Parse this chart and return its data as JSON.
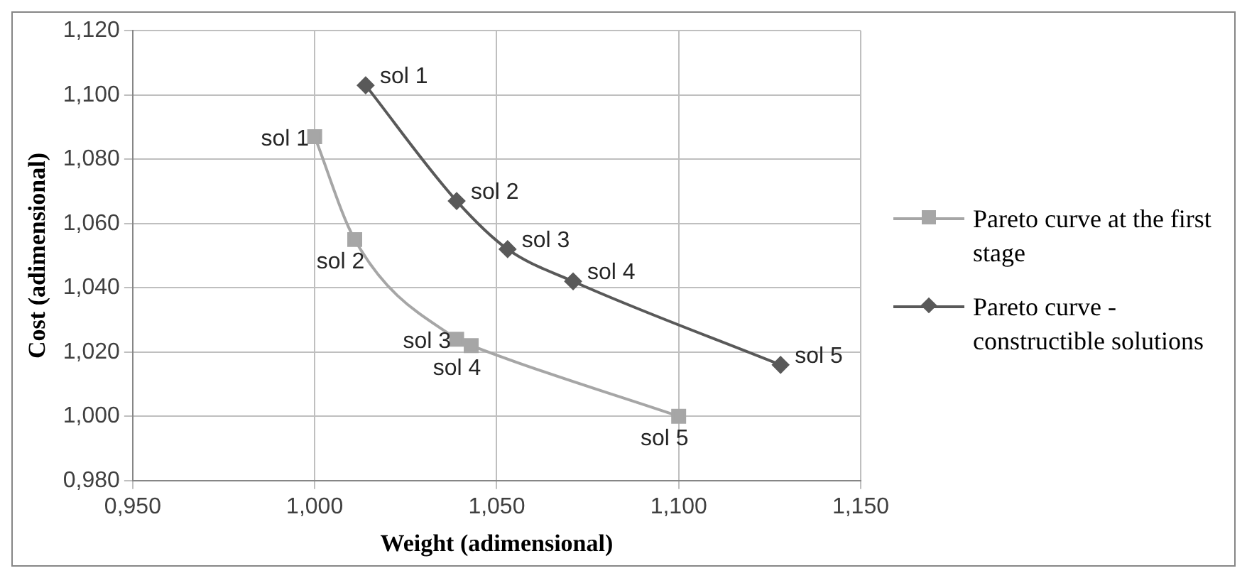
{
  "chart_data": {
    "type": "line",
    "xlabel": "Weight (adimensional)",
    "ylabel": "Cost (adimensional)",
    "series": [
      {
        "name": "Pareto curve at the first stage",
        "color": "#a6a6a6",
        "marker": "square",
        "x": [
          1.0,
          1.011,
          1.039,
          1.043,
          1.1
        ],
        "values": [
          1.087,
          1.055,
          1.024,
          1.022,
          1.0
        ]
      },
      {
        "name": "Pareto curve - constructible solutions",
        "color": "#595959",
        "marker": "diamond",
        "x": [
          1.014,
          1.039,
          1.053,
          1.071,
          1.128
        ],
        "values": [
          1.103,
          1.067,
          1.052,
          1.042,
          1.016
        ]
      }
    ],
    "xlim": [
      0.95,
      1.15
    ],
    "xticks": [
      {
        "value": 0.95,
        "label": "0,950"
      },
      {
        "value": 1.0,
        "label": "1,000"
      },
      {
        "value": 1.05,
        "label": "1,050"
      },
      {
        "value": 1.1,
        "label": "1,100"
      },
      {
        "value": 1.15,
        "label": "1,150"
      }
    ],
    "ylim": [
      0.98,
      1.12
    ],
    "yticks": [
      {
        "value": 0.98,
        "label": "0,980"
      },
      {
        "value": 1.0,
        "label": "1,000"
      },
      {
        "value": 1.02,
        "label": "1,020"
      },
      {
        "value": 1.04,
        "label": "1,040"
      },
      {
        "value": 1.06,
        "label": "1,060"
      },
      {
        "value": 1.08,
        "label": "1,080"
      },
      {
        "value": 1.1,
        "label": "1,100"
      },
      {
        "value": 1.12,
        "label": "1,120"
      }
    ],
    "grid": true,
    "legend": "right",
    "annotations": [
      {
        "text": "sol 1",
        "x": 1.0,
        "y": 1.087
      },
      {
        "text": "sol 2",
        "x": 1.011,
        "y": 1.055
      },
      {
        "text": "sol 3",
        "x": 1.039,
        "y": 1.024
      },
      {
        "text": "sol 4",
        "x": 1.043,
        "y": 1.022
      },
      {
        "text": "sol 5",
        "x": 1.1,
        "y": 1.0
      },
      {
        "text": "sol 1",
        "x": 1.014,
        "y": 1.103
      },
      {
        "text": "sol 2",
        "x": 1.039,
        "y": 1.067
      },
      {
        "text": "sol 3",
        "x": 1.053,
        "y": 1.052
      },
      {
        "text": "sol 4",
        "x": 1.071,
        "y": 1.042
      },
      {
        "text": "sol 5",
        "x": 1.128,
        "y": 1.016
      }
    ]
  }
}
